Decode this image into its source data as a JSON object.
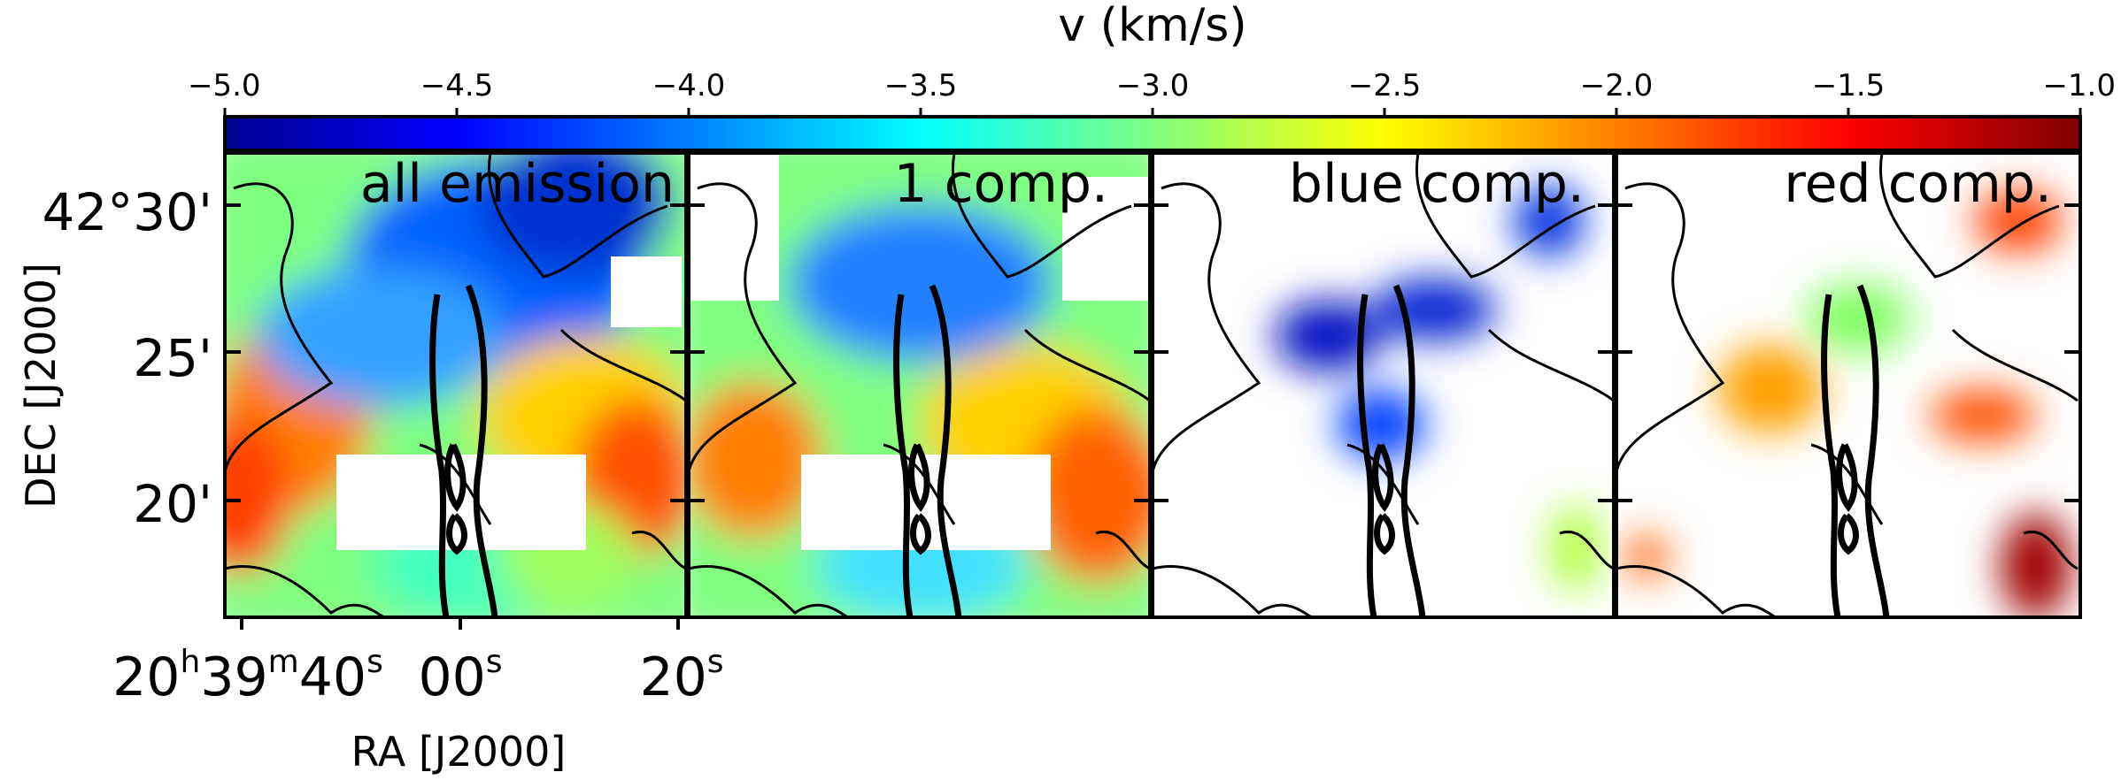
{
  "chart_data": {
    "type": "heatmap",
    "colorbar": {
      "title": "v (km/s)",
      "colormap": "jet",
      "range": [
        -5.0,
        -1.0
      ],
      "ticks": [
        -5.0,
        -4.5,
        -4.0,
        -3.5,
        -3.0,
        -2.5,
        -2.0,
        -1.5,
        -1.0
      ],
      "tick_labels": [
        "−5.0",
        "−4.5",
        "−4.0",
        "−3.5",
        "−3.0",
        "−2.5",
        "−2.0",
        "−1.5",
        "−1.0"
      ]
    },
    "panels": [
      {
        "label": "all emission"
      },
      {
        "label": "1 comp."
      },
      {
        "label": "blue comp."
      },
      {
        "label": "red comp."
      }
    ],
    "yaxis": {
      "label": "DEC [J2000]",
      "tick_labels": [
        "42°30'",
        "25'",
        "20'"
      ]
    },
    "xaxis": {
      "label": "RA [J2000]",
      "tick_labels": [
        {
          "main": "20",
          "parts": [
            [
              "h",
              "39"
            ],
            [
              "m",
              "40"
            ],
            [
              "s",
              ""
            ]
          ]
        },
        {
          "main": "00",
          "parts": [
            [
              "s",
              ""
            ]
          ]
        },
        {
          "main": "20",
          "parts": [
            [
              "s",
              ""
            ]
          ]
        }
      ]
    }
  }
}
